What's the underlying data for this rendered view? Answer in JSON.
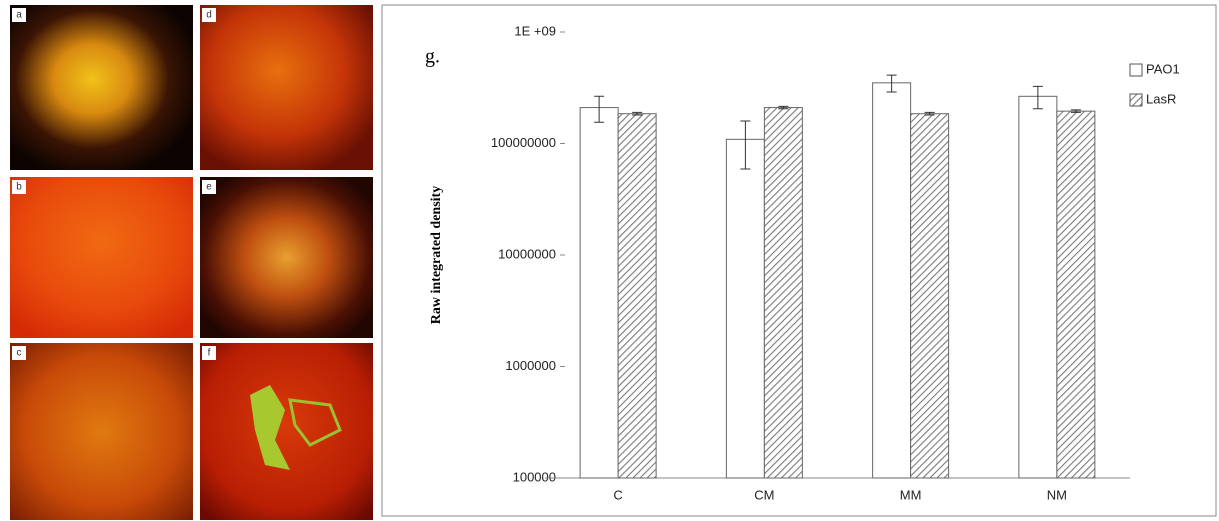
{
  "panels": [
    {
      "label": "a"
    },
    {
      "label": "b"
    },
    {
      "label": "c"
    },
    {
      "label": "d"
    },
    {
      "label": "e"
    },
    {
      "label": "f"
    }
  ],
  "chart_data": {
    "type": "bar",
    "annotation": "g.",
    "y_label": "Raw integrated density",
    "categories": [
      "C",
      "CM",
      "MM",
      "NM"
    ],
    "series": [
      {
        "name": "PAO1",
        "color": "#ffffff",
        "values": [
          210000000,
          109000000,
          350000000,
          265000000
        ],
        "errors": [
          55000000,
          50000000,
          60000000,
          60000000
        ]
      },
      {
        "name": "LasR",
        "color": "#ffffff",
        "hatch": "#7a7a7a",
        "values": [
          185000000,
          210000000,
          185000000,
          195000000
        ],
        "errors": [
          5000000,
          5000000,
          5000000,
          5000000
        ]
      }
    ],
    "log_scale": true,
    "ylim": [
      100000,
      1000000000
    ],
    "yticks": [
      100000,
      1000000,
      10000000,
      100000000,
      {
        "value": 1000000000,
        "label": "1E +09"
      }
    ],
    "grid": false,
    "legend": "right"
  }
}
